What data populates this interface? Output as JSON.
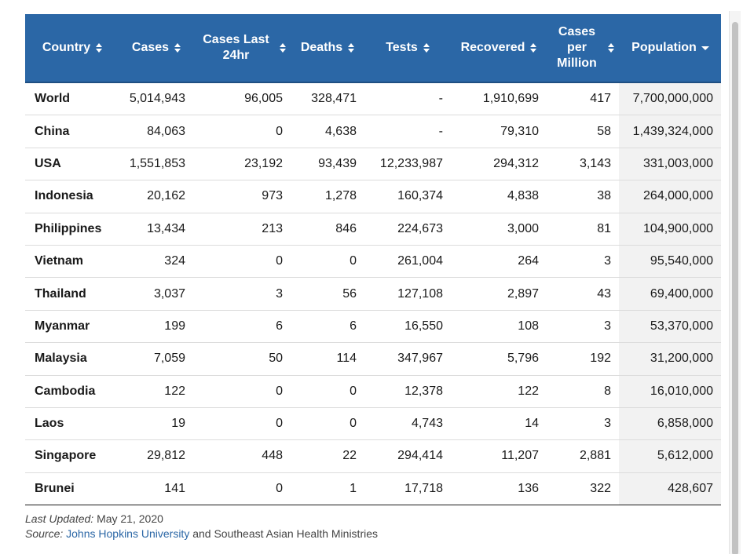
{
  "table": {
    "headers": [
      {
        "label": "Country",
        "sort": "both"
      },
      {
        "label": "Cases",
        "sort": "both"
      },
      {
        "label": "Cases Last 24hr",
        "sort": "both"
      },
      {
        "label": "Deaths",
        "sort": "both"
      },
      {
        "label": "Tests",
        "sort": "both"
      },
      {
        "label": "Recovered",
        "sort": "both"
      },
      {
        "label": "Cases per Million",
        "sort": "both"
      },
      {
        "label": "Population",
        "sort": "desc"
      }
    ],
    "rows": [
      [
        "World",
        "5,014,943",
        "96,005",
        "328,471",
        "-",
        "1,910,699",
        "417",
        "7,700,000,000"
      ],
      [
        "China",
        "84,063",
        "0",
        "4,638",
        "-",
        "79,310",
        "58",
        "1,439,324,000"
      ],
      [
        "USA",
        "1,551,853",
        "23,192",
        "93,439",
        "12,233,987",
        "294,312",
        "3,143",
        "331,003,000"
      ],
      [
        "Indonesia",
        "20,162",
        "973",
        "1,278",
        "160,374",
        "4,838",
        "38",
        "264,000,000"
      ],
      [
        "Philippines",
        "13,434",
        "213",
        "846",
        "224,673",
        "3,000",
        "81",
        "104,900,000"
      ],
      [
        "Vietnam",
        "324",
        "0",
        "0",
        "261,004",
        "264",
        "3",
        "95,540,000"
      ],
      [
        "Thailand",
        "3,037",
        "3",
        "56",
        "127,108",
        "2,897",
        "43",
        "69,400,000"
      ],
      [
        "Myanmar",
        "199",
        "6",
        "6",
        "16,550",
        "108",
        "3",
        "53,370,000"
      ],
      [
        "Malaysia",
        "7,059",
        "50",
        "114",
        "347,967",
        "5,796",
        "192",
        "31,200,000"
      ],
      [
        "Cambodia",
        "122",
        "0",
        "0",
        "12,378",
        "122",
        "8",
        "16,010,000"
      ],
      [
        "Laos",
        "19",
        "0",
        "0",
        "4,743",
        "14",
        "3",
        "6,858,000"
      ],
      [
        "Singapore",
        "29,812",
        "448",
        "22",
        "294,414",
        "11,207",
        "2,881",
        "5,612,000"
      ],
      [
        "Brunei",
        "141",
        "0",
        "1",
        "17,718",
        "136",
        "322",
        "428,607"
      ]
    ]
  },
  "footnote": {
    "updated_label": "Last Updated:",
    "updated_value": "May 21, 2020",
    "source_label": "Source:",
    "source_link": "Johns Hopkins University",
    "source_rest": "and Southeast Asian Health Ministries"
  },
  "colors": {
    "header_bg": "#2b67a6",
    "link": "#2b67a6",
    "population_cell_bg": "#f2f2f2"
  },
  "icons": {
    "sort_both": "sort-both-icon",
    "sort_desc": "sort-desc-icon"
  }
}
